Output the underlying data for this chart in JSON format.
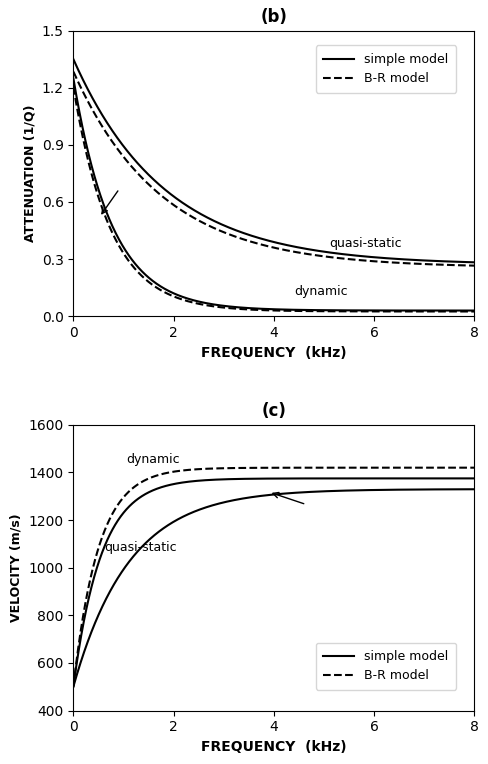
{
  "fig_width": 4.89,
  "fig_height": 7.64,
  "dpi": 100,
  "background_color": "#ffffff",
  "panel_b": {
    "title": "(b)",
    "xlabel": "FREQUENCY  (kHz)",
    "ylabel": "ATTENUATION (1/Q)",
    "xlim": [
      0,
      8
    ],
    "ylim": [
      0,
      1.5
    ],
    "yticks": [
      0,
      0.3,
      0.6,
      0.9,
      1.2,
      1.5
    ],
    "xticks": [
      0,
      2,
      4,
      6,
      8
    ],
    "label_dynamic": "dynamic",
    "label_quasistatic": "quasi-static",
    "legend_simple": "simple model",
    "legend_br": "B-R model"
  },
  "panel_c": {
    "title": "(c)",
    "xlabel": "FREQUENCY  (kHz)",
    "ylabel": "VELOCITY (m/s)",
    "xlim": [
      0,
      8
    ],
    "ylim": [
      400,
      1600
    ],
    "yticks": [
      400,
      600,
      800,
      1000,
      1200,
      1400,
      1600
    ],
    "xticks": [
      0,
      2,
      4,
      6,
      8
    ],
    "label_dynamic": "dynamic",
    "label_quasistatic": "quasi-static",
    "legend_simple": "simple model",
    "legend_br": "B-R model"
  }
}
